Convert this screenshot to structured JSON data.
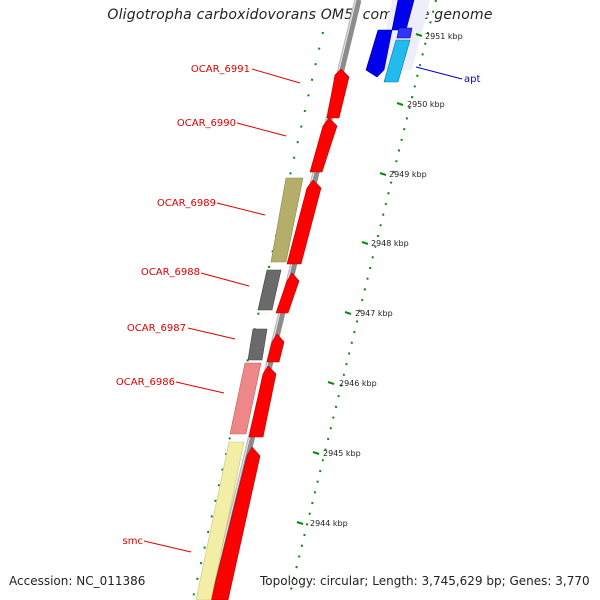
{
  "title": "Oligotropha carboxidovorans OM5, complete genome",
  "footer": {
    "accession": "Accession: NC_011386",
    "summary": "Topology: circular; Length: 3,745,629 bp; Genes: 3,770"
  },
  "ticks": [
    "2951 kbp",
    "2950 kbp",
    "2949 kbp",
    "2948 kbp",
    "2947 kbp",
    "2946 kbp",
    "2945 kbp",
    "2944 kbp"
  ],
  "colors": {
    "forward_cds": "#ff0000",
    "reverse_cds": "#0000ff",
    "highlight_cds": "#00aaff",
    "label_red": "#e00000",
    "label_blue": "#0000cc",
    "olive": "#b5ad6a",
    "grey": "#6a6a6a",
    "pink": "#ee8888",
    "pale_yellow": "#f3eea6",
    "tick_green": "#0a8a0a",
    "backbone": "#8c8c8c"
  },
  "labels": [
    {
      "text": "OCAR_6991",
      "color": "red"
    },
    {
      "text": "OCAR_6990",
      "color": "red"
    },
    {
      "text": "OCAR_6989",
      "color": "red"
    },
    {
      "text": "OCAR_6988",
      "color": "red"
    },
    {
      "text": "OCAR_6987",
      "color": "red"
    },
    {
      "text": "OCAR_6986",
      "color": "red"
    },
    {
      "text": "smc",
      "color": "red"
    },
    {
      "text": "apt",
      "color": "blue"
    }
  ]
}
